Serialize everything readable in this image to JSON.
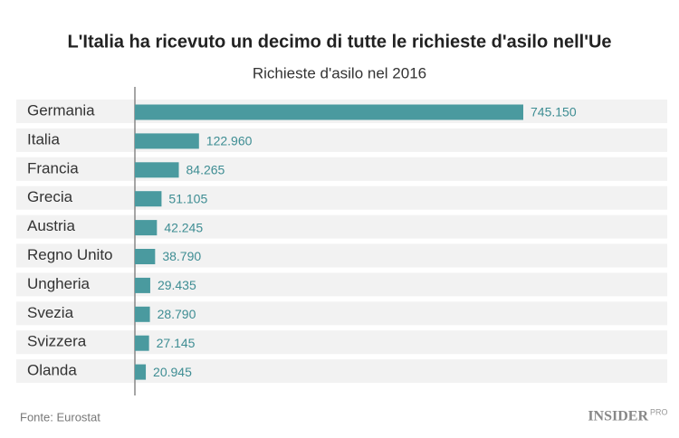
{
  "chart_data": {
    "type": "bar",
    "orientation": "horizontal",
    "title": "L'Italia ha ricevuto un decimo di tutte le richieste d'asilo nell'Ue",
    "subtitle": "Richieste d'asilo nel 2016",
    "categories": [
      "Germania",
      "Italia",
      "Francia",
      "Grecia",
      "Austria",
      "Regno Unito",
      "Ungheria",
      "Svezia",
      "Svizzera",
      "Olanda"
    ],
    "values": [
      745150,
      122960,
      84265,
      51105,
      42245,
      38790,
      29435,
      28790,
      27145,
      20945
    ],
    "value_labels": [
      "745.150",
      "122.960",
      "84.265",
      "51.105",
      "42.245",
      "38.790",
      "29.435",
      "28.790",
      "27.145",
      "20.945"
    ],
    "color": "#4a9a9f",
    "label_color": "#3e8d93",
    "source": "Fonte: Eurostat",
    "brand": {
      "name": "INSIDER",
      "tag": "PRO"
    }
  }
}
